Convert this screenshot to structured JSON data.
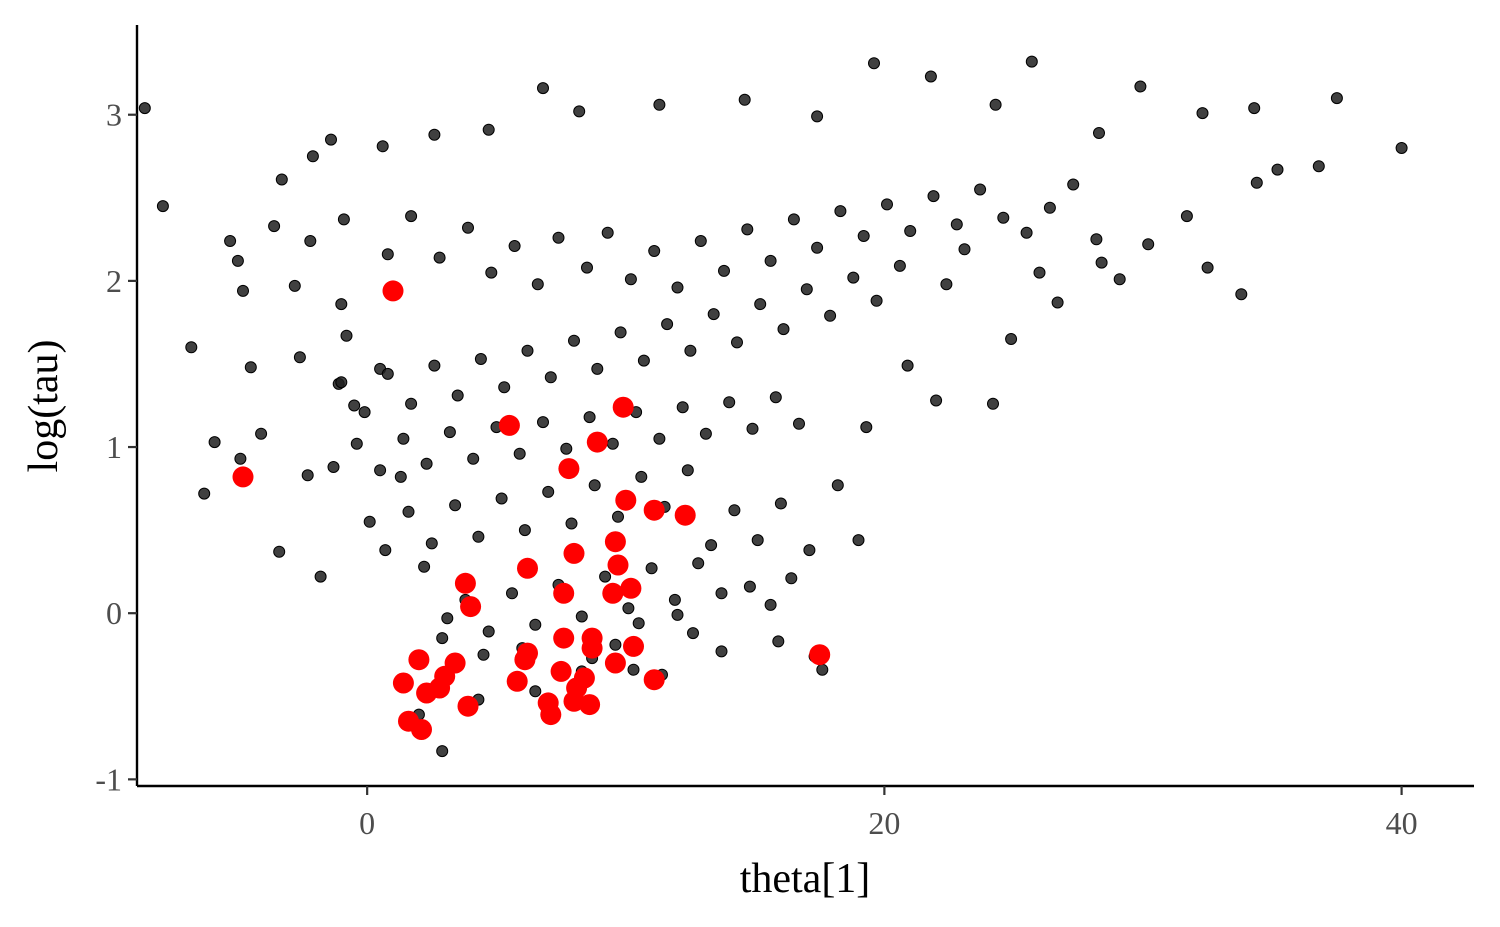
{
  "chart_data": {
    "type": "scatter",
    "title": "",
    "xlabel": "theta[1]",
    "ylabel": "log(tau)",
    "xlim": [
      -8.9,
      42.8
    ],
    "ylim": [
      -1.04,
      3.54
    ],
    "x_ticks": [
      0,
      20,
      40
    ],
    "x_tick_labels": [
      "0",
      "20",
      "40"
    ],
    "y_ticks": [
      -1,
      0,
      1,
      2,
      3
    ],
    "y_tick_labels": [
      "-1",
      "0",
      "1",
      "2",
      "3"
    ],
    "grid": false,
    "legend": "none",
    "series": [
      {
        "color": "#1f1f1f",
        "points": [
          [
            -7.9,
            2.45
          ],
          [
            -5.3,
            2.24
          ],
          [
            -4.5,
            1.48
          ],
          [
            -1.0,
            1.86
          ],
          [
            -0.5,
            1.25
          ],
          [
            -8.6,
            3.04
          ],
          [
            -3.6,
            2.33
          ],
          [
            -2.8,
            1.97
          ],
          [
            -6.8,
            1.6
          ],
          [
            -6.3,
            0.72
          ],
          [
            -3.3,
            2.61
          ],
          [
            -2.2,
            2.24
          ],
          [
            -1.1,
            1.38
          ],
          [
            -4.1,
            1.08
          ],
          [
            -5.9,
            1.03
          ],
          [
            -4.9,
            0.93
          ],
          [
            -2.3,
            0.83
          ],
          [
            -1.3,
            0.88
          ],
          [
            -1.8,
            0.22
          ],
          [
            -3.4,
            0.37
          ],
          [
            -5.0,
            2.12
          ],
          [
            -4.8,
            1.94
          ],
          [
            -2.6,
            1.54
          ],
          [
            -0.8,
            1.67
          ],
          [
            0.5,
            1.47
          ],
          [
            1.3,
            0.82
          ],
          [
            2.2,
            0.28
          ],
          [
            3.1,
            -0.03
          ],
          [
            2.9,
            -0.83
          ],
          [
            2.0,
            -0.61
          ],
          [
            4.3,
            -0.52
          ],
          [
            6.5,
            -0.47
          ],
          [
            7.2,
            -0.59
          ],
          [
            8.3,
            -0.35
          ],
          [
            10.3,
            -0.34
          ],
          [
            11.4,
            -0.37
          ],
          [
            12.6,
            -0.12
          ],
          [
            13.7,
            -0.23
          ],
          [
            15.9,
            -0.17
          ],
          [
            17.3,
            -0.26
          ],
          [
            17.6,
            -0.34
          ],
          [
            16.4,
            0.21
          ],
          [
            17.1,
            0.38
          ],
          [
            19.0,
            0.44
          ],
          [
            18.2,
            0.77
          ],
          [
            19.3,
            1.12
          ],
          [
            20.9,
            1.49
          ],
          [
            22.0,
            1.28
          ],
          [
            24.2,
            1.26
          ],
          [
            24.9,
            1.65
          ],
          [
            26.7,
            1.87
          ],
          [
            28.4,
            2.11
          ],
          [
            29.1,
            2.01
          ],
          [
            30.2,
            2.22
          ],
          [
            31.7,
            2.39
          ],
          [
            32.5,
            2.08
          ],
          [
            33.8,
            1.92
          ],
          [
            34.4,
            2.59
          ],
          [
            35.2,
            2.67
          ],
          [
            36.8,
            2.69
          ],
          [
            37.5,
            3.1
          ],
          [
            40.0,
            2.8
          ],
          [
            34.3,
            3.04
          ],
          [
            32.3,
            3.01
          ],
          [
            29.9,
            3.17
          ],
          [
            28.3,
            2.89
          ],
          [
            25.7,
            3.32
          ],
          [
            24.3,
            3.06
          ],
          [
            21.8,
            3.23
          ],
          [
            19.6,
            3.31
          ],
          [
            17.4,
            2.99
          ],
          [
            14.6,
            3.09
          ],
          [
            11.3,
            3.06
          ],
          [
            8.2,
            3.02
          ],
          [
            6.8,
            3.16
          ],
          [
            4.7,
            2.91
          ],
          [
            2.6,
            2.88
          ],
          [
            0.6,
            2.81
          ],
          [
            -1.4,
            2.85
          ],
          [
            -2.1,
            2.75
          ],
          [
            -0.9,
            2.37
          ],
          [
            0.8,
            2.16
          ],
          [
            1.7,
            2.39
          ],
          [
            2.8,
            2.14
          ],
          [
            3.9,
            2.32
          ],
          [
            4.8,
            2.05
          ],
          [
            5.7,
            2.21
          ],
          [
            6.6,
            1.98
          ],
          [
            7.4,
            2.26
          ],
          [
            8.5,
            2.08
          ],
          [
            9.3,
            2.29
          ],
          [
            10.2,
            2.01
          ],
          [
            11.1,
            2.18
          ],
          [
            12.0,
            1.96
          ],
          [
            12.9,
            2.24
          ],
          [
            13.8,
            2.06
          ],
          [
            14.7,
            2.31
          ],
          [
            15.6,
            2.12
          ],
          [
            16.5,
            2.37
          ],
          [
            17.4,
            2.2
          ],
          [
            18.3,
            2.42
          ],
          [
            19.2,
            2.27
          ],
          [
            20.1,
            2.46
          ],
          [
            21.0,
            2.3
          ],
          [
            21.9,
            2.51
          ],
          [
            22.8,
            2.34
          ],
          [
            23.7,
            2.55
          ],
          [
            24.6,
            2.38
          ],
          [
            25.5,
            2.29
          ],
          [
            26.4,
            2.44
          ],
          [
            27.3,
            2.58
          ],
          [
            28.2,
            2.25
          ],
          [
            26.0,
            2.05
          ],
          [
            23.1,
            2.19
          ],
          [
            22.4,
            1.98
          ],
          [
            20.6,
            2.09
          ],
          [
            19.7,
            1.88
          ],
          [
            18.8,
            2.02
          ],
          [
            17.9,
            1.79
          ],
          [
            17.0,
            1.95
          ],
          [
            16.1,
            1.71
          ],
          [
            15.2,
            1.86
          ],
          [
            14.3,
            1.63
          ],
          [
            13.4,
            1.8
          ],
          [
            12.5,
            1.58
          ],
          [
            11.6,
            1.74
          ],
          [
            10.7,
            1.52
          ],
          [
            9.8,
            1.69
          ],
          [
            8.9,
            1.47
          ],
          [
            8.0,
            1.64
          ],
          [
            7.1,
            1.42
          ],
          [
            6.2,
            1.58
          ],
          [
            5.3,
            1.36
          ],
          [
            4.4,
            1.53
          ],
          [
            3.5,
            1.31
          ],
          [
            2.6,
            1.49
          ],
          [
            1.7,
            1.26
          ],
          [
            0.8,
            1.44
          ],
          [
            -0.1,
            1.21
          ],
          [
            -1.0,
            1.39
          ],
          [
            -0.4,
            1.02
          ],
          [
            0.5,
            0.86
          ],
          [
            1.4,
            1.05
          ],
          [
            2.3,
            0.9
          ],
          [
            3.2,
            1.09
          ],
          [
            4.1,
            0.93
          ],
          [
            5.0,
            1.12
          ],
          [
            5.9,
            0.96
          ],
          [
            6.8,
            1.15
          ],
          [
            7.7,
            0.99
          ],
          [
            8.6,
            1.18
          ],
          [
            9.5,
            1.02
          ],
          [
            10.4,
            1.21
          ],
          [
            11.3,
            1.05
          ],
          [
            12.2,
            1.24
          ],
          [
            13.1,
            1.08
          ],
          [
            14.0,
            1.27
          ],
          [
            14.9,
            1.11
          ],
          [
            15.8,
            1.3
          ],
          [
            16.7,
            1.14
          ],
          [
            12.4,
            0.86
          ],
          [
            11.5,
            0.64
          ],
          [
            10.6,
            0.82
          ],
          [
            9.7,
            0.58
          ],
          [
            8.8,
            0.77
          ],
          [
            7.9,
            0.54
          ],
          [
            7.0,
            0.73
          ],
          [
            6.1,
            0.5
          ],
          [
            5.2,
            0.69
          ],
          [
            4.3,
            0.46
          ],
          [
            3.4,
            0.65
          ],
          [
            2.5,
            0.42
          ],
          [
            1.6,
            0.61
          ],
          [
            0.7,
            0.38
          ],
          [
            0.1,
            0.55
          ],
          [
            13.3,
            0.41
          ],
          [
            14.2,
            0.62
          ],
          [
            15.1,
            0.44
          ],
          [
            16.0,
            0.66
          ],
          [
            13.7,
            0.12
          ],
          [
            12.8,
            0.3
          ],
          [
            11.9,
            0.08
          ],
          [
            11.0,
            0.27
          ],
          [
            10.1,
            0.03
          ],
          [
            9.2,
            0.22
          ],
          [
            8.3,
            -0.02
          ],
          [
            7.4,
            0.17
          ],
          [
            6.5,
            -0.07
          ],
          [
            5.6,
            0.12
          ],
          [
            4.7,
            -0.11
          ],
          [
            3.8,
            0.08
          ],
          [
            2.9,
            -0.15
          ],
          [
            14.8,
            0.16
          ],
          [
            15.6,
            0.05
          ],
          [
            9.6,
            -0.19
          ],
          [
            10.5,
            -0.06
          ],
          [
            12.0,
            -0.01
          ],
          [
            6.0,
            -0.21
          ],
          [
            4.5,
            -0.25
          ],
          [
            8.7,
            -0.27
          ]
        ]
      },
      {
        "color": "#ff0000",
        "points": [
          [
            -4.8,
            0.82
          ],
          [
            1.0,
            1.94
          ],
          [
            2.0,
            -0.28
          ],
          [
            1.6,
            -0.65
          ],
          [
            2.1,
            -0.7
          ],
          [
            3.4,
            -0.3
          ],
          [
            2.3,
            -0.48
          ],
          [
            2.8,
            -0.45
          ],
          [
            3.0,
            -0.38
          ],
          [
            1.4,
            -0.42
          ],
          [
            3.9,
            -0.56
          ],
          [
            3.8,
            0.18
          ],
          [
            4.0,
            0.04
          ],
          [
            5.5,
            1.13
          ],
          [
            6.2,
            0.27
          ],
          [
            6.2,
            -0.24
          ],
          [
            6.1,
            -0.28
          ],
          [
            5.8,
            -0.41
          ],
          [
            7.1,
            -0.61
          ],
          [
            7.0,
            -0.54
          ],
          [
            7.6,
            0.12
          ],
          [
            7.5,
            -0.35
          ],
          [
            7.6,
            -0.15
          ],
          [
            8.0,
            0.36
          ],
          [
            7.8,
            0.87
          ],
          [
            8.4,
            -0.39
          ],
          [
            8.7,
            -0.21
          ],
          [
            8.1,
            -0.45
          ],
          [
            8.9,
            1.03
          ],
          [
            8.7,
            -0.15
          ],
          [
            8.6,
            -0.55
          ],
          [
            8.0,
            -0.53
          ],
          [
            9.6,
            -0.3
          ],
          [
            9.9,
            1.24
          ],
          [
            10.0,
            0.68
          ],
          [
            9.6,
            0.43
          ],
          [
            9.7,
            0.29
          ],
          [
            9.5,
            0.12
          ],
          [
            10.2,
            0.15
          ],
          [
            10.3,
            -0.2
          ],
          [
            11.1,
            0.62
          ],
          [
            12.3,
            0.59
          ],
          [
            11.1,
            -0.4
          ],
          [
            17.5,
            -0.25
          ]
        ]
      }
    ]
  }
}
